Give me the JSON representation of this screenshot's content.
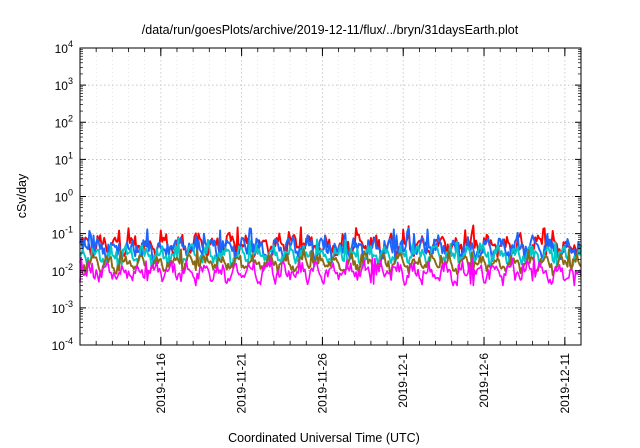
{
  "chart_data": {
    "type": "line",
    "title": "/data/run/goesPlots/archive/2019-12-11/flux/../bryn/31daysEarth.plot",
    "xlabel": "Coordinated Universal Time (UTC)",
    "ylabel": "cSv/day",
    "yscale": "log",
    "ylim": [
      0.0001,
      10000
    ],
    "y_ticks": [
      {
        "base": "10",
        "exp": "-4",
        "value": 0.0001
      },
      {
        "base": "10",
        "exp": "-3",
        "value": 0.001
      },
      {
        "base": "10",
        "exp": "-2",
        "value": 0.01
      },
      {
        "base": "10",
        "exp": "-1",
        "value": 0.1
      },
      {
        "base": "10",
        "exp": "0",
        "value": 1
      },
      {
        "base": "10",
        "exp": "1",
        "value": 10
      },
      {
        "base": "10",
        "exp": "2",
        "value": 100
      },
      {
        "base": "10",
        "exp": "3",
        "value": 1000
      },
      {
        "base": "10",
        "exp": "4",
        "value": 10000
      }
    ],
    "xlim": [
      "2019-11-11",
      "2019-12-12"
    ],
    "x_ticks": [
      "2019-11-16",
      "2019-11-21",
      "2019-11-26",
      "2019-12-1",
      "2019-12-6",
      "2019-12-11"
    ],
    "x_tick_dates": [
      "2019-11-16",
      "2019-11-21",
      "2019-11-26",
      "2019-12-01",
      "2019-12-06",
      "2019-12-11"
    ],
    "grid": true,
    "series": [
      {
        "color": "#ff0000",
        "base": 0.05,
        "spread": 0.2,
        "spike": 0.13
      },
      {
        "color": "#1a66ff",
        "base": 0.042,
        "spread": 0.22,
        "spike": 0.11
      },
      {
        "color": "#00c8c8",
        "base": 0.027,
        "spread": 0.16,
        "spike": 0.06
      },
      {
        "color": "#8b6914",
        "base": 0.016,
        "spread": 0.14,
        "spike": 0.03
      },
      {
        "color": "#ff00ff",
        "base": 0.0095,
        "spread": 0.18,
        "spike": 0.02,
        "dip": 0.004
      }
    ]
  }
}
